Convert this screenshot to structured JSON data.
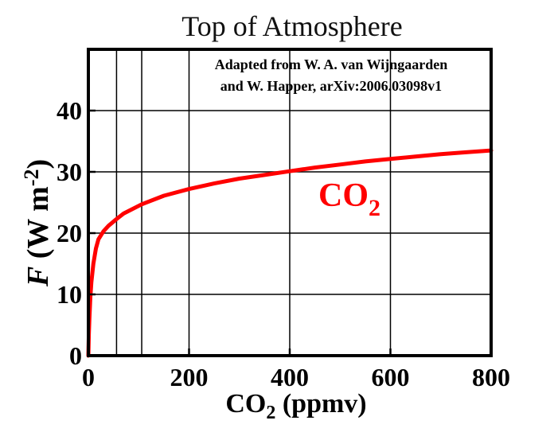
{
  "chart_data": {
    "type": "line",
    "title": "Top of Atmosphere",
    "annotation": {
      "line1": "Adapted from W. A. van Wijngaarden",
      "line2": "and W. Happer, arXiv:2006.03098v1"
    },
    "xlabel": {
      "main": "CO",
      "sub": "2",
      "rest": " (ppmv)"
    },
    "ylabel": {
      "italic": "F",
      "rest": " (W m",
      "sup": "-2",
      "close": ")"
    },
    "xlim": [
      0,
      800
    ],
    "ylim": [
      0,
      50
    ],
    "x_ticks": [
      "0",
      "200",
      "400",
      "600",
      "800"
    ],
    "y_ticks": [
      "0",
      "10",
      "20",
      "30",
      "40"
    ],
    "vertical_gridlines": [
      0,
      56,
      106,
      200,
      400,
      600,
      800
    ],
    "horizontal_gridlines": [
      0,
      10,
      20,
      30,
      40,
      50
    ],
    "series": [
      {
        "name": {
          "main": "CO",
          "sub": "2"
        },
        "color": "#ff0000",
        "x": [
          0,
          1,
          2,
          4,
          6,
          10,
          15,
          20,
          30,
          40,
          56,
          70,
          106,
          150,
          200,
          250,
          300,
          350,
          400,
          450,
          500,
          550,
          600,
          650,
          700,
          750,
          800
        ],
        "y": [
          0,
          3.5,
          6,
          9.5,
          12,
          15,
          17.5,
          19,
          20.3,
          21.2,
          22.3,
          23.2,
          24.7,
          26.1,
          27.2,
          28.1,
          28.9,
          29.5,
          30.1,
          30.7,
          31.2,
          31.7,
          32.1,
          32.5,
          32.9,
          33.2,
          33.5
        ]
      }
    ],
    "colors": {
      "curve": "#ff0000",
      "axis": "#000000",
      "grid": "#000000"
    },
    "grid": true
  }
}
